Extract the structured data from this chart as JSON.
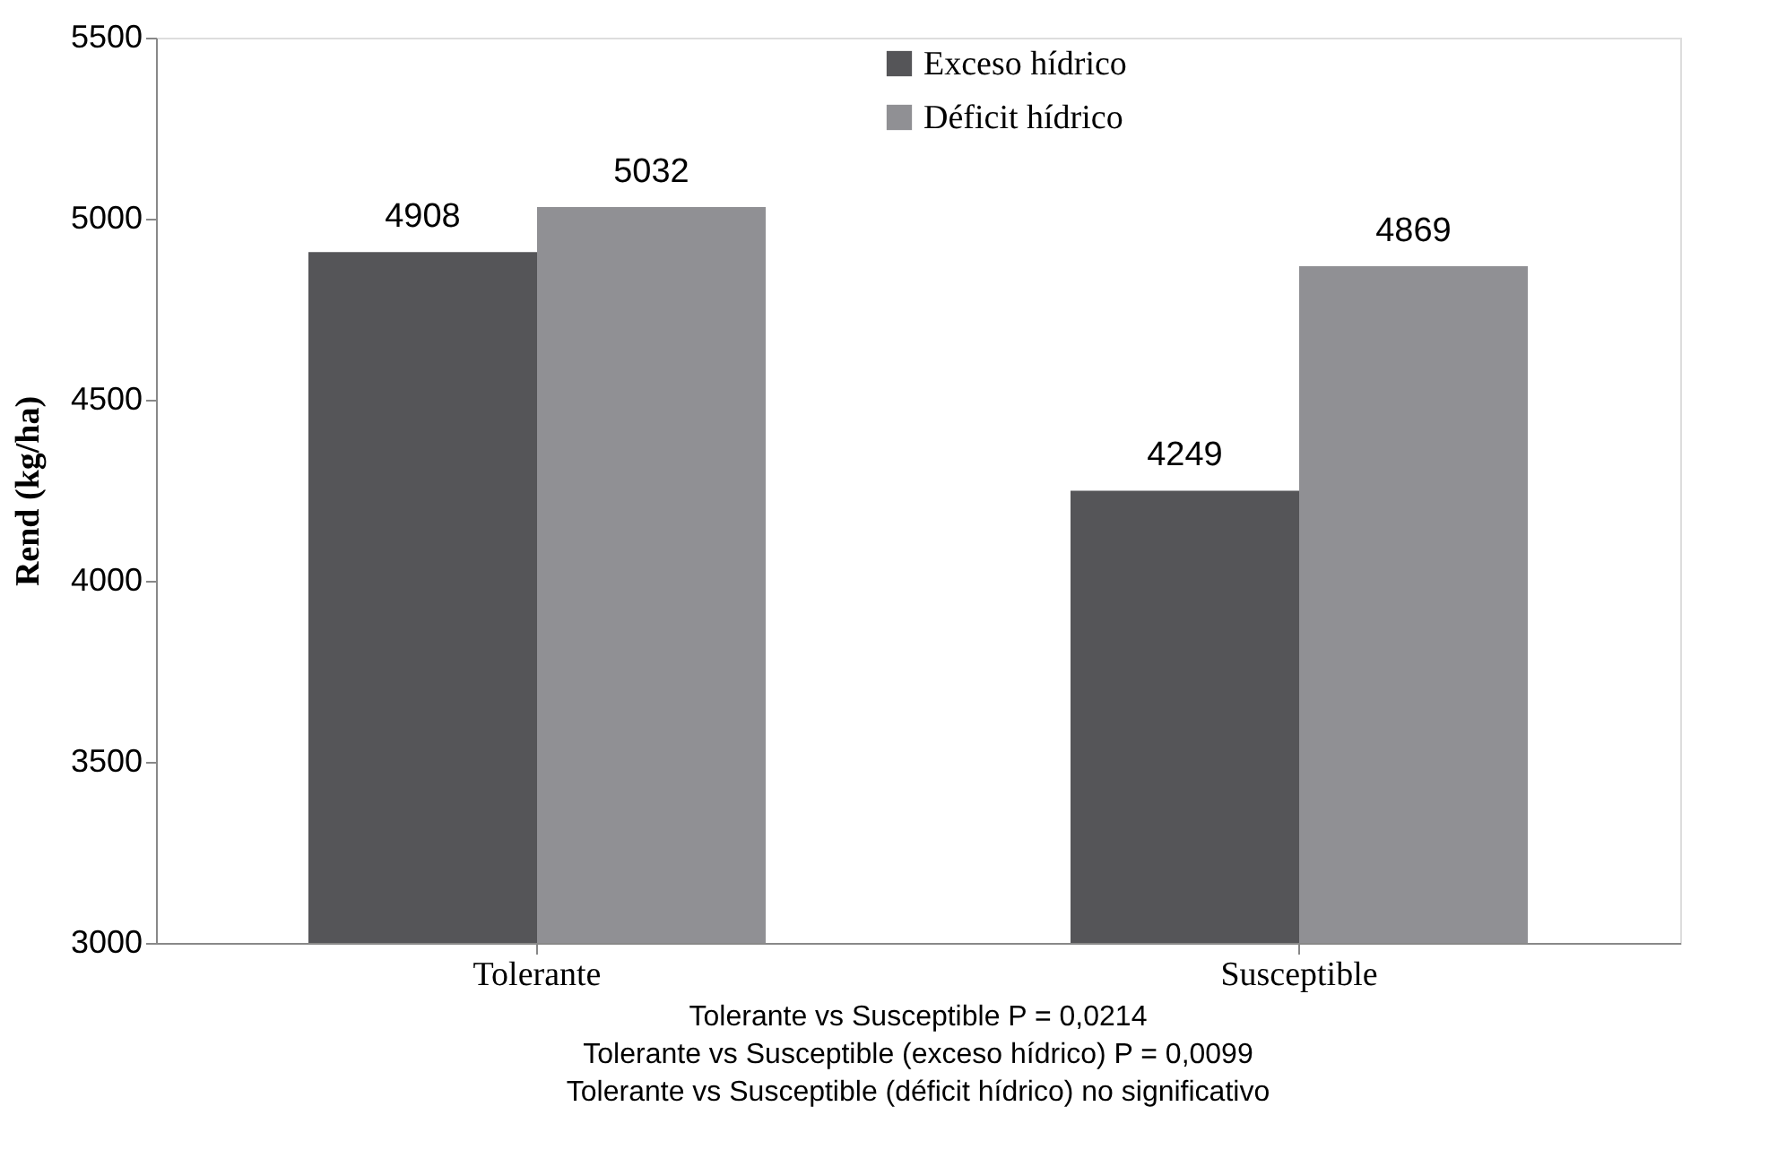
{
  "chart_data": {
    "type": "bar",
    "categories": [
      "Tolerante",
      "Susceptible"
    ],
    "series": [
      {
        "name": "Exceso hídrico",
        "color": "#555558",
        "values": [
          4908,
          4249
        ]
      },
      {
        "name": "Déficit hídrico",
        "color": "#909094",
        "values": [
          5032,
          4869
        ]
      }
    ],
    "ylabel": "Rend (kg/ha)",
    "ylim": [
      3000,
      5500
    ],
    "yticks": [
      3000,
      3500,
      4000,
      4500,
      5000,
      5500
    ],
    "data_labels": true,
    "legend": "top",
    "grid": false,
    "annotations": [
      "Tolerante vs Susceptible P = 0,0214",
      "Tolerante vs Susceptible (exceso hídrico) P = 0,0099",
      "Tolerante vs Susceptible (déficit hídrico) no significativo"
    ]
  }
}
